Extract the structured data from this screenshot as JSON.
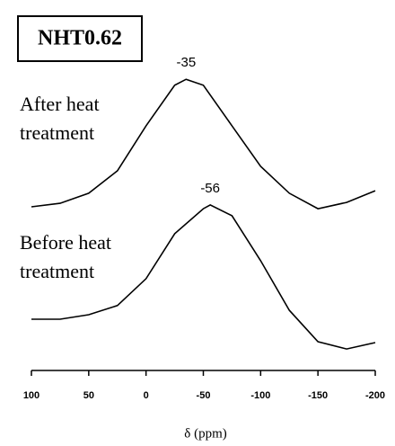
{
  "chart_data": {
    "type": "line",
    "title": "NHT0.62",
    "xlabel": "δ (ppm)",
    "xlim": [
      100,
      -200
    ],
    "xticks": [
      100,
      50,
      0,
      -50,
      -100,
      -150,
      -200
    ],
    "ylim": [
      0,
      100
    ],
    "color": "#000000",
    "series": [
      {
        "name": [
          "After heat",
          "treatment"
        ],
        "x": [
          100,
          75,
          50,
          25,
          0,
          -25,
          -35,
          -50,
          -75,
          -100,
          -125,
          -150,
          -175,
          -200
        ],
        "values": [
          51.7,
          52.8,
          56.0,
          63.1,
          77.3,
          90.1,
          92.0,
          90.1,
          77.3,
          64.5,
          56.0,
          51.1,
          53.1,
          56.8
        ],
        "peak": {
          "x": -35,
          "label": "-35"
        }
      },
      {
        "name": [
          "Before heat",
          "treatment"
        ],
        "x": [
          100,
          75,
          50,
          25,
          0,
          -25,
          -50,
          -56,
          -75,
          -100,
          -125,
          -150,
          -175,
          -200
        ],
        "values": [
          16.2,
          16.2,
          17.6,
          20.5,
          29.0,
          43.2,
          51.1,
          52.3,
          48.9,
          34.7,
          19.0,
          9.1,
          6.8,
          8.8
        ],
        "peak": {
          "x": -56,
          "label": "-56"
        }
      }
    ]
  }
}
